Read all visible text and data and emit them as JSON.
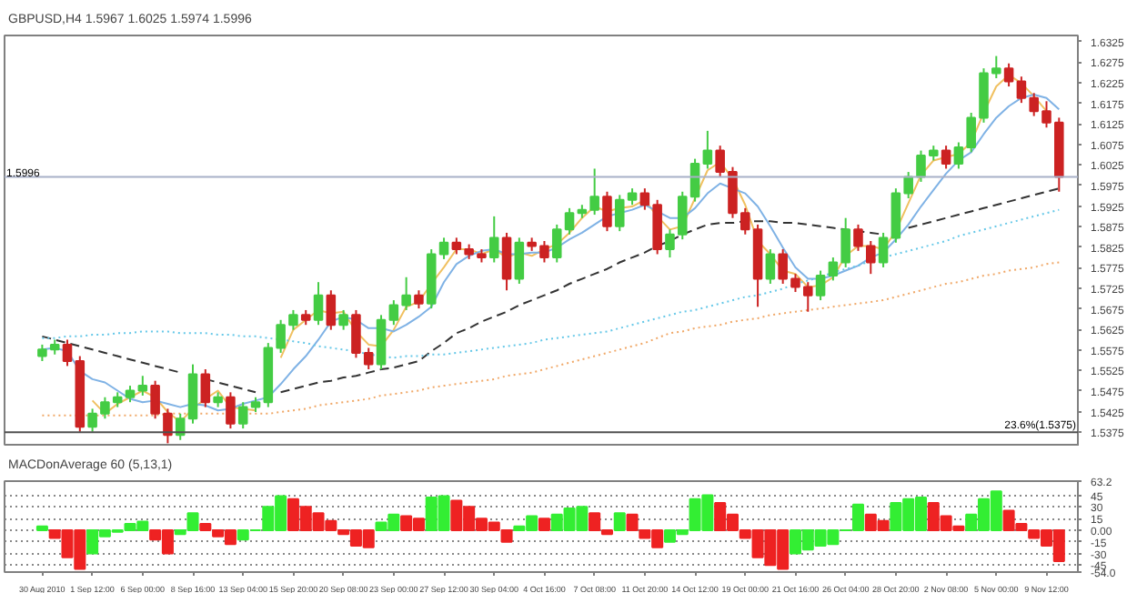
{
  "chart_data": [
    {
      "type": "candlestick",
      "title": "GBPUSD,H4 1.5967 1.6025 1.5974 1.5996",
      "categories": [
        null,
        null,
        null,
        null,
        null,
        null,
        null,
        null,
        null,
        null,
        null,
        null,
        null,
        null,
        null,
        null,
        null,
        null,
        null,
        null,
        null,
        null,
        null,
        null,
        null,
        null,
        null,
        null,
        null,
        null,
        null,
        null,
        null,
        null,
        null,
        null,
        null,
        null,
        null,
        null,
        null,
        null,
        null,
        null,
        null,
        null,
        null,
        null,
        null,
        null,
        null,
        null,
        null,
        null,
        null,
        null,
        null,
        null,
        null,
        null,
        null,
        null,
        null,
        null,
        null,
        null,
        null,
        null,
        null,
        null,
        null,
        null,
        null,
        null,
        null,
        null,
        null,
        null,
        null,
        null,
        null,
        null
      ],
      "ohlc": [
        [
          1.556,
          1.5588,
          1.5548,
          1.5576
        ],
        [
          1.5576,
          1.56,
          1.5564,
          1.5588
        ],
        [
          1.5588,
          1.56,
          1.5536,
          1.5548
        ],
        [
          1.5548,
          1.556,
          1.5376,
          1.5388
        ],
        [
          1.5388,
          1.5432,
          1.5376,
          1.542
        ],
        [
          1.542,
          1.546,
          1.5408,
          1.5448
        ],
        [
          1.5448,
          1.5472,
          1.5436,
          1.546
        ],
        [
          1.546,
          1.5488,
          1.5448,
          1.5476
        ],
        [
          1.5476,
          1.5512,
          1.5464,
          1.5488
        ],
        [
          1.5488,
          1.55,
          1.5408,
          1.542
        ],
        [
          1.542,
          1.5432,
          1.5348,
          1.5368
        ],
        [
          1.5368,
          1.542,
          1.5356,
          1.5408
        ],
        [
          1.5408,
          1.554,
          1.5396,
          1.5516
        ],
        [
          1.5516,
          1.5528,
          1.5436,
          1.5448
        ],
        [
          1.5448,
          1.5472,
          1.5436,
          1.546
        ],
        [
          1.546,
          1.5472,
          1.5384,
          1.5396
        ],
        [
          1.5396,
          1.5448,
          1.5384,
          1.5436
        ],
        [
          1.5436,
          1.546,
          1.5424,
          1.5448
        ],
        [
          1.5448,
          1.5592,
          1.5436,
          1.558
        ],
        [
          1.558,
          1.5648,
          1.5568,
          1.5636
        ],
        [
          1.5636,
          1.5672,
          1.5624,
          1.566
        ],
        [
          1.566,
          1.5672,
          1.5636,
          1.5648
        ],
        [
          1.5648,
          1.574,
          1.5636,
          1.5708
        ],
        [
          1.5708,
          1.572,
          1.5624,
          1.5636
        ],
        [
          1.5636,
          1.5672,
          1.5624,
          1.566
        ],
        [
          1.566,
          1.5672,
          1.5556,
          1.5568
        ],
        [
          1.5568,
          1.558,
          1.5528,
          1.554
        ],
        [
          1.554,
          1.566,
          1.5528,
          1.5648
        ],
        [
          1.5648,
          1.5696,
          1.5636,
          1.5684
        ],
        [
          1.5684,
          1.5752,
          1.5672,
          1.5708
        ],
        [
          1.5708,
          1.572,
          1.5676,
          1.5688
        ],
        [
          1.5688,
          1.582,
          1.5676,
          1.5808
        ],
        [
          1.5808,
          1.5848,
          1.5796,
          1.5836
        ],
        [
          1.5836,
          1.5848,
          1.5808,
          1.582
        ],
        [
          1.582,
          1.5832,
          1.5796,
          1.5808
        ],
        [
          1.5808,
          1.582,
          1.5788,
          1.58
        ],
        [
          1.58,
          1.59,
          1.5788,
          1.5848
        ],
        [
          1.5848,
          1.586,
          1.572,
          1.5748
        ],
        [
          1.5748,
          1.5848,
          1.5736,
          1.5836
        ],
        [
          1.5836,
          1.5848,
          1.5816,
          1.5828
        ],
        [
          1.5828,
          1.584,
          1.5788,
          1.58
        ],
        [
          1.58,
          1.588,
          1.5788,
          1.5868
        ],
        [
          1.5868,
          1.592,
          1.5856,
          1.5908
        ],
        [
          1.5908,
          1.5928,
          1.5896,
          1.5916
        ],
        [
          1.5916,
          1.6016,
          1.5904,
          1.5948
        ],
        [
          1.5948,
          1.596,
          1.5864,
          1.5876
        ],
        [
          1.5876,
          1.5952,
          1.5864,
          1.594
        ],
        [
          1.594,
          1.5968,
          1.5928,
          1.5956
        ],
        [
          1.5956,
          1.5968,
          1.5916,
          1.5928
        ],
        [
          1.5928,
          1.594,
          1.5808,
          1.582
        ],
        [
          1.582,
          1.5868,
          1.58,
          1.5856
        ],
        [
          1.5856,
          1.596,
          1.5844,
          1.5948
        ],
        [
          1.5948,
          1.604,
          1.5936,
          1.6028
        ],
        [
          1.6028,
          1.6108,
          1.6016,
          1.606
        ],
        [
          1.606,
          1.6072,
          1.5996,
          1.6008
        ],
        [
          1.6008,
          1.602,
          1.5896,
          1.5908
        ],
        [
          1.5908,
          1.592,
          1.5856,
          1.5868
        ],
        [
          1.5868,
          1.588,
          1.568,
          1.5748
        ],
        [
          1.5748,
          1.582,
          1.5736,
          1.5808
        ],
        [
          1.5808,
          1.582,
          1.5736,
          1.5748
        ],
        [
          1.5748,
          1.576,
          1.5716,
          1.5728
        ],
        [
          1.5728,
          1.574,
          1.5668,
          1.5708
        ],
        [
          1.5708,
          1.5768,
          1.5696,
          1.5756
        ],
        [
          1.5756,
          1.58,
          1.5744,
          1.5788
        ],
        [
          1.5788,
          1.5896,
          1.5776,
          1.5868
        ],
        [
          1.5868,
          1.588,
          1.5816,
          1.5828
        ],
        [
          1.5828,
          1.584,
          1.576,
          1.5788
        ],
        [
          1.5788,
          1.586,
          1.5776,
          1.5848
        ],
        [
          1.5848,
          1.5968,
          1.5836,
          1.5956
        ],
        [
          1.5956,
          1.6008,
          1.5944,
          1.5996
        ],
        [
          1.5996,
          1.606,
          1.5984,
          1.6048
        ],
        [
          1.6048,
          1.6072,
          1.6036,
          1.606
        ],
        [
          1.606,
          1.6072,
          1.6016,
          1.6028
        ],
        [
          1.6028,
          1.608,
          1.6016,
          1.6068
        ],
        [
          1.6068,
          1.6152,
          1.6056,
          1.614
        ],
        [
          1.614,
          1.626,
          1.6128,
          1.6248
        ],
        [
          1.6248,
          1.629,
          1.6236,
          1.626
        ],
        [
          1.626,
          1.6272,
          1.6216,
          1.6228
        ],
        [
          1.6228,
          1.624,
          1.6176,
          1.6188
        ],
        [
          1.6188,
          1.62,
          1.6144,
          1.6156
        ],
        [
          1.6156,
          1.618,
          1.6116,
          1.6128
        ],
        [
          1.6128,
          1.614,
          1.596,
          1.5996
        ]
      ],
      "colors": [
        "#44cc44",
        "#44cc44",
        "#cc2222",
        "#cc2222",
        "#44cc44",
        "#44cc44",
        "#44cc44",
        "#44cc44",
        "#44cc44",
        "#cc2222",
        "#cc2222",
        "#44cc44",
        "#44cc44",
        "#cc2222",
        "#44cc44",
        "#cc2222",
        "#44cc44",
        "#44cc44",
        "#44cc44",
        "#44cc44",
        "#44cc44",
        "#cc2222",
        "#44cc44",
        "#cc2222",
        "#44cc44",
        "#cc2222",
        "#cc2222",
        "#44cc44",
        "#44cc44",
        "#44cc44",
        "#cc2222",
        "#44cc44",
        "#44cc44",
        "#cc2222",
        "#cc2222",
        "#cc2222",
        "#44cc44",
        "#cc2222",
        "#44cc44",
        "#cc2222",
        "#cc2222",
        "#44cc44",
        "#44cc44",
        "#44cc44",
        "#44cc44",
        "#cc2222",
        "#44cc44",
        "#44cc44",
        "#cc2222",
        "#cc2222",
        "#44cc44",
        "#44cc44",
        "#44cc44",
        "#44cc44",
        "#cc2222",
        "#cc2222",
        "#cc2222",
        "#cc2222",
        "#44cc44",
        "#cc2222",
        "#cc2222",
        "#cc2222",
        "#44cc44",
        "#44cc44",
        "#44cc44",
        "#cc2222",
        "#cc2222",
        "#44cc44",
        "#44cc44",
        "#44cc44",
        "#44cc44",
        "#44cc44",
        "#cc2222",
        "#44cc44",
        "#44cc44",
        "#44cc44",
        "#44cc44",
        "#cc2222",
        "#cc2222",
        "#cc2222",
        "#cc2222",
        "#cc2222"
      ],
      "series": [
        {
          "type": "line",
          "color": "#f0c060",
          "line_style": "solid",
          "values": [
            null,
            null,
            null,
            null,
            1.5452,
            1.542,
            1.5444,
            1.546,
            1.5476,
            1.546,
            1.5424,
            1.54,
            1.5432,
            1.5456,
            1.5476,
            1.5436,
            1.5432,
            1.5428,
            null,
            1.5556,
            1.5624,
            1.5648,
            1.5672,
            1.5664,
            1.5668,
            1.562,
            1.5588,
            1.5584,
            1.5624,
            1.568,
            1.5692,
            1.5736,
            1.5776,
            1.582,
            1.582,
            1.5808,
            1.582,
            1.58,
            1.5812,
            1.5804,
            1.582,
            1.5832,
            1.586,
            1.5896,
            1.5924,
            1.5912,
            1.592,
            1.5924,
            1.594,
            1.59,
            1.5868,
            1.5876,
            1.5944,
            1.6012,
            1.6032,
            1.5992,
            1.5928,
            1.584,
            1.5808,
            1.5768,
            1.576,
            1.5728,
            1.5732,
            1.5752,
            1.5804,
            1.5828,
            1.5828,
            1.582,
            1.5864,
            1.5932,
            1.6,
            1.6036,
            1.6044,
            1.6052,
            1.608,
            1.6152,
            1.6216,
            1.6244,
            1.6224,
            1.6192,
            1.6156,
            null
          ]
        },
        {
          "type": "line",
          "color": "#7fb2e5",
          "line_style": "solid",
          "values": [
            1.5576,
            1.558,
            1.5572,
            1.5524,
            1.5504,
            1.5496,
            1.5476,
            1.5456,
            1.5448,
            1.5452,
            1.5444,
            1.5436,
            1.5444,
            1.544,
            1.5428,
            1.5432,
            1.5444,
            1.5452,
            1.546,
            1.5492,
            1.5528,
            1.556,
            1.56,
            1.5644,
            1.5656,
            1.5648,
            1.5628,
            1.5628,
            1.562,
            1.5636,
            1.5656,
            1.568,
            1.574,
            1.5784,
            1.5804,
            1.5816,
            1.582,
            1.5808,
            1.5808,
            1.5812,
            1.5812,
            1.5824,
            1.5844,
            1.586,
            1.588,
            1.59,
            1.5908,
            1.5916,
            1.5928,
            1.5912,
            1.5896,
            1.5896,
            1.592,
            1.5956,
            1.598,
            1.5968,
            1.5956,
            1.5924,
            1.5876,
            1.5824,
            1.5776,
            1.5748,
            1.5748,
            1.5756,
            1.5768,
            1.578,
            1.58,
            1.5812,
            1.5844,
            1.588,
            1.5924,
            1.5964,
            1.6004,
            1.6036,
            1.6056,
            1.61,
            1.614,
            1.6168,
            1.6188,
            1.6196,
            1.6188,
            1.616
          ]
        },
        {
          "type": "line",
          "color": "#333333",
          "line_style": "dashed",
          "values": [
            1.5608,
            1.56,
            1.5592,
            1.5584,
            1.5576,
            1.5568,
            1.556,
            1.5552,
            1.5544,
            1.5536,
            1.5528,
            1.552,
            null,
            1.5504,
            1.5496,
            1.5488,
            1.548,
            1.5472,
            null,
            1.5472,
            1.548,
            1.5488,
            1.5496,
            1.55,
            1.5508,
            1.5512,
            1.552,
            1.5528,
            1.5532,
            1.554,
            1.5548,
            1.5572,
            1.5592,
            1.5616,
            1.5628,
            1.5644,
            1.5656,
            1.5668,
            1.5684,
            1.5696,
            1.5708,
            1.572,
            1.5736,
            1.5748,
            1.576,
            1.5772,
            1.5788,
            1.58,
            1.5812,
            1.5828,
            1.584,
            1.5856,
            1.5868,
            1.588,
            1.5884,
            1.5884,
            1.5888,
            1.5888,
            1.5888,
            1.5884,
            1.5884,
            1.588,
            1.5876,
            1.5872,
            1.5868,
            1.5864,
            1.586,
            1.5856,
            null,
            1.5872,
            1.588,
            1.5888,
            1.5896,
            1.5904,
            1.5912,
            1.592,
            1.5928,
            1.5936,
            1.5944,
            1.5952,
            1.596,
            1.5968
          ]
        },
        {
          "type": "line",
          "color": "#66c8e8",
          "line_style": "dotted",
          "values": [
            1.5604,
            1.5604,
            1.5608,
            1.5608,
            1.5612,
            1.5612,
            1.5616,
            1.5616,
            1.562,
            1.562,
            1.562,
            1.5616,
            1.5616,
            1.5616,
            1.5612,
            1.5612,
            1.5608,
            1.5608,
            1.5604,
            1.56,
            1.5596,
            1.5592,
            1.5584,
            1.558,
            1.5576,
            1.5572,
            1.5564,
            1.556,
            1.5556,
            1.556,
            1.556,
            1.5564,
            1.5564,
            1.5568,
            1.5572,
            1.5576,
            1.558,
            1.5584,
            1.5588,
            1.5592,
            1.56,
            1.5604,
            1.5608,
            1.5612,
            1.5616,
            1.562,
            1.5628,
            1.5636,
            1.5644,
            1.5652,
            1.566,
            1.5668,
            1.5672,
            1.568,
            1.5688,
            1.5696,
            1.5704,
            1.5708,
            1.5716,
            1.5724,
            1.5736,
            1.5744,
            1.5752,
            1.5764,
            1.5772,
            1.578,
            1.5792,
            1.58,
            1.5808,
            1.5816,
            1.5824,
            1.5832,
            1.584,
            1.5852,
            1.586,
            1.5868,
            1.5876,
            1.5884,
            1.5892,
            1.59,
            1.5908,
            1.5916
          ]
        },
        {
          "type": "line",
          "color": "#f0a868",
          "line_style": "dotted",
          "values": [
            1.5416,
            1.5416,
            1.5416,
            1.5416,
            1.5416,
            1.5416,
            1.5416,
            1.5416,
            1.5416,
            1.5416,
            1.542,
            1.542,
            1.542,
            1.542,
            1.542,
            1.542,
            1.542,
            1.542,
            1.542,
            1.5424,
            1.5428,
            1.5432,
            1.544,
            1.5444,
            1.5448,
            1.5452,
            1.5456,
            1.5464,
            1.5468,
            1.5472,
            1.5476,
            1.5484,
            1.5488,
            1.5492,
            1.5496,
            1.55,
            1.5504,
            1.5512,
            1.5516,
            1.552,
            1.5528,
            1.5536,
            1.5544,
            1.5552,
            1.556,
            1.5568,
            1.5576,
            1.5584,
            1.5592,
            1.5604,
            1.5616,
            1.562,
            1.5628,
            1.5632,
            1.5636,
            1.5644,
            1.5648,
            1.5652,
            1.566,
            1.5664,
            1.5668,
            1.5672,
            1.5676,
            1.568,
            1.5684,
            1.5688,
            1.5692,
            1.5696,
            1.5704,
            1.5712,
            1.572,
            1.5728,
            1.5736,
            1.574,
            1.5748,
            1.5756,
            1.576,
            1.5768,
            1.5772,
            1.5776,
            1.5784,
            1.5788
          ]
        }
      ],
      "ylim": [
        1.534,
        1.634
      ],
      "yticks": [
        1.5375,
        1.5425,
        1.5475,
        1.5525,
        1.5575,
        1.5625,
        1.5675,
        1.5725,
        1.5775,
        1.5825,
        1.5875,
        1.5925,
        1.5975,
        1.6025,
        1.6075,
        1.6125,
        1.6175,
        1.6225,
        1.6275,
        1.6325
      ],
      "ref_lines": [
        {
          "axis": "y",
          "value": 1.5996,
          "label": "1.5996",
          "color": "#a8b0c8"
        },
        {
          "axis": "y",
          "value": 1.5375,
          "label": "23.6%(1.5375)",
          "color": "#505050"
        }
      ],
      "tick_labels": "y"
    },
    {
      "type": "bar",
      "title": "MACDonAverage 60 (5,13,1)",
      "categories": [
        "30 Aug 2010",
        null,
        null,
        null,
        "1 Sep 12:00",
        null,
        null,
        null,
        "6 Sep 00:00",
        null,
        null,
        null,
        "8 Sep 16:00",
        null,
        null,
        null,
        "13 Sep 04:00",
        null,
        null,
        null,
        "15 Sep 20:00",
        null,
        null,
        null,
        "20 Sep 08:00",
        null,
        null,
        null,
        "23 Sep 00:00",
        null,
        null,
        null,
        "27 Sep 12:00",
        null,
        null,
        null,
        "30 Sep 04:00",
        null,
        null,
        null,
        "4 Oct 16:00",
        null,
        null,
        null,
        "7 Oct 08:00",
        null,
        null,
        null,
        "11 Oct 20:00",
        null,
        null,
        null,
        "14 Oct 12:00",
        null,
        null,
        null,
        "19 Oct 00:00",
        null,
        null,
        null,
        "21 Oct 16:00",
        null,
        null,
        null,
        "26 Oct 04:00",
        null,
        null,
        null,
        "28 Oct 20:00",
        null,
        null,
        null,
        "2 Nov 08:00",
        null,
        null,
        null,
        "5 Nov 00:00",
        null,
        null,
        null,
        "9 Nov 12:00",
        null
      ],
      "values": [
        5,
        -10,
        -35,
        -50,
        -30,
        -8,
        -2,
        8,
        11,
        -12,
        -30,
        -5,
        22,
        8,
        -8,
        -18,
        -12,
        0,
        30,
        44,
        40,
        30,
        22,
        12,
        -5,
        -20,
        -22,
        10,
        20,
        18,
        15,
        42,
        44,
        38,
        30,
        15,
        10,
        -15,
        5,
        18,
        15,
        20,
        28,
        30,
        22,
        -5,
        22,
        20,
        -10,
        -22,
        -15,
        -5,
        40,
        45,
        35,
        20,
        -10,
        -35,
        -45,
        -50,
        -30,
        -25,
        -20,
        -18,
        0,
        33,
        20,
        12,
        35,
        40,
        42,
        35,
        18,
        5,
        20,
        40,
        50,
        25,
        8,
        -10,
        -20,
        -40
      ],
      "colors": [
        "#33ee33",
        "#ee2222",
        "#ee2222",
        "#ee2222",
        "#33ee33",
        "#33ee33",
        "#33ee33",
        "#33ee33",
        "#33ee33",
        "#ee2222",
        "#ee2222",
        "#33ee33",
        "#33ee33",
        "#ee2222",
        "#ee2222",
        "#ee2222",
        "#33ee33",
        "#33ee33",
        "#33ee33",
        "#33ee33",
        "#ee2222",
        "#ee2222",
        "#ee2222",
        "#ee2222",
        "#ee2222",
        "#ee2222",
        "#ee2222",
        "#33ee33",
        "#33ee33",
        "#ee2222",
        "#ee2222",
        "#33ee33",
        "#33ee33",
        "#ee2222",
        "#ee2222",
        "#ee2222",
        "#ee2222",
        "#ee2222",
        "#33ee33",
        "#33ee33",
        "#ee2222",
        "#33ee33",
        "#33ee33",
        "#33ee33",
        "#ee2222",
        "#ee2222",
        "#33ee33",
        "#ee2222",
        "#ee2222",
        "#ee2222",
        "#33ee33",
        "#33ee33",
        "#33ee33",
        "#33ee33",
        "#ee2222",
        "#ee2222",
        "#ee2222",
        "#ee2222",
        "#ee2222",
        "#ee2222",
        "#33ee33",
        "#33ee33",
        "#33ee33",
        "#33ee33",
        "#33ee33",
        "#33ee33",
        "#ee2222",
        "#ee2222",
        "#33ee33",
        "#33ee33",
        "#33ee33",
        "#ee2222",
        "#ee2222",
        "#ee2222",
        "#33ee33",
        "#33ee33",
        "#33ee33",
        "#ee2222",
        "#ee2222",
        "#ee2222",
        "#ee2222",
        "#ee2222"
      ],
      "ylim": [
        -54.0,
        63.2
      ],
      "yticks": [
        63.2,
        45,
        30,
        15,
        {
          "value": 0,
          "label": "0.00"
        },
        -15,
        -30,
        -45,
        {
          "value": -54.0,
          "label": "-54.0"
        }
      ],
      "grid": "y"
    }
  ]
}
